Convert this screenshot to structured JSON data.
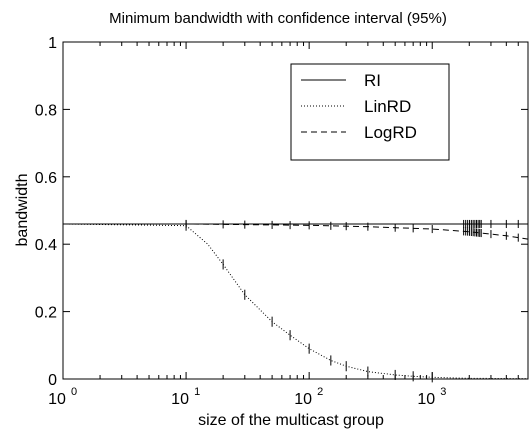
{
  "chart_data": {
    "type": "line",
    "title": "Minimum bandwidth with confidence interval (95%)",
    "xlabel": "size of the multicast group",
    "ylabel": "bandwidth",
    "xscale": "log",
    "xlim": [
      1,
      6000
    ],
    "ylim": [
      0,
      1
    ],
    "grid": false,
    "legend_position": "top-right",
    "x_ticks": [
      {
        "value": 1,
        "base": "10",
        "exp": "0"
      },
      {
        "value": 10,
        "base": "10",
        "exp": "1"
      },
      {
        "value": 100,
        "base": "10",
        "exp": "2"
      },
      {
        "value": 1000,
        "base": "10",
        "exp": "3"
      }
    ],
    "y_ticks": [
      "0",
      "0.2",
      "0.4",
      "0.6",
      "0.8",
      "1"
    ],
    "y_tick_values": [
      0,
      0.2,
      0.4,
      0.6,
      0.8,
      1
    ],
    "series": [
      {
        "name": "RI",
        "style": "solid",
        "x": [
          1,
          10,
          100,
          1000,
          6000
        ],
        "y": [
          0.46,
          0.46,
          0.46,
          0.46,
          0.46
        ],
        "ci": 0.012
      },
      {
        "name": "LinRD",
        "style": "dotted",
        "x": [
          1,
          10,
          15,
          20,
          30,
          50,
          70,
          100,
          150,
          200,
          300,
          500,
          700,
          1000,
          2000,
          6000
        ],
        "y": [
          0.46,
          0.455,
          0.4,
          0.34,
          0.25,
          0.17,
          0.13,
          0.09,
          0.055,
          0.038,
          0.022,
          0.012,
          0.008,
          0.005,
          0.002,
          0.001
        ],
        "ci": 0.015
      },
      {
        "name": "LogRD",
        "style": "dashed",
        "x": [
          1,
          10,
          100,
          300,
          1000,
          2000,
          4000,
          6000
        ],
        "y": [
          0.46,
          0.46,
          0.456,
          0.452,
          0.445,
          0.437,
          0.425,
          0.415
        ],
        "ci": 0.012
      }
    ]
  }
}
